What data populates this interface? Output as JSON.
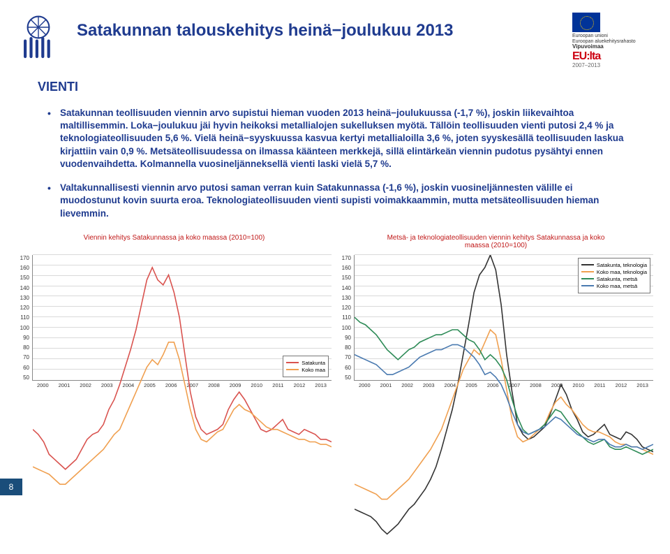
{
  "header": {
    "title": "Satakunnan talouskehitys heinä−joulukuu 2013",
    "eu": {
      "line1": "Euroopan unioni",
      "line2": "Euroopan aluekehitysrahasto",
      "line3": "Vipuvoimaa",
      "brand": "EU:lta",
      "years": "2007–2013"
    }
  },
  "section": "VIENTI",
  "bullets": [
    "Satakunnan teollisuuden viennin arvo supistui hieman vuoden 2013 heinä−joulukuussa (-1,7 %), joskin liikevaihtoa maltillisemmin. Loka−joulukuu jäi hyvin heikoksi metallialojen sukelluksen myötä. Tällöin teollisuuden vienti putosi 2,4 % ja teknologiateollisuuden 5,6 %. Vielä heinä−syyskuussa kasvua kertyi metallialoilla 3,6 %, joten syyskesällä teollisuuden laskua kirjattiin vain 0,9 %. Metsäteollisuudessa on ilmassa käänteen merkkejä, sillä elintärkeän viennin pudotus pysähtyi ennen vuodenvaihdetta. Kolmannella vuosineljänneksellä vienti laski vielä 5,7 %.",
    "Valtakunnallisesti viennin arvo putosi saman verran kuin Satakunnassa (-1,6 %), joskin vuosineljännesten välille ei muodostunut kovin suurta eroa. Teknologiateollisuuden vienti supisti voimakkaammin, mutta metsäteollisuuden hieman lievemmin."
  ],
  "chart1": {
    "title": "Viennin kehitys Satakunnassa ja koko maassa (2010=100)",
    "ylim": [
      50,
      170
    ],
    "ytick_step": 10,
    "years": [
      "2000",
      "2001",
      "2002",
      "2003",
      "2004",
      "2005",
      "2006",
      "2007",
      "2008",
      "2009",
      "2010",
      "2011",
      "2012",
      "2013"
    ],
    "background_color": "#ffffff",
    "grid_color": "#d9d9d9",
    "legend": {
      "position": "bottom-right",
      "items": [
        {
          "label": "Satakunta",
          "color": "#d9534f"
        },
        {
          "label": "Koko maa",
          "color": "#f0a050"
        }
      ]
    },
    "series": [
      {
        "name": "Satakunta",
        "color": "#d9534f",
        "width": 1.6,
        "values": [
          100,
          98,
          95,
          90,
          88,
          86,
          84,
          86,
          88,
          92,
          96,
          98,
          99,
          102,
          108,
          112,
          118,
          125,
          132,
          140,
          150,
          160,
          165,
          160,
          158,
          162,
          155,
          145,
          130,
          115,
          105,
          100,
          98,
          99,
          100,
          102,
          108,
          112,
          115,
          112,
          108,
          104,
          100,
          99,
          100,
          102,
          104,
          100,
          99,
          98,
          100,
          99,
          98,
          96,
          96,
          95
        ]
      },
      {
        "name": "Koko maa",
        "color": "#f0a050",
        "width": 1.6,
        "values": [
          85,
          84,
          83,
          82,
          80,
          78,
          78,
          80,
          82,
          84,
          86,
          88,
          90,
          92,
          95,
          98,
          100,
          105,
          110,
          115,
          120,
          125,
          128,
          126,
          130,
          135,
          135,
          128,
          118,
          108,
          100,
          96,
          95,
          97,
          99,
          100,
          104,
          108,
          110,
          108,
          107,
          105,
          103,
          101,
          100,
          100,
          99,
          98,
          97,
          96,
          96,
          95,
          95,
          94,
          94,
          93
        ]
      }
    ]
  },
  "chart2": {
    "title_line1": "Metsä- ja teknologiateollisuuden viennin kehitys Satakunnassa ja koko",
    "title_line2": "maassa (2010=100)",
    "ylim": [
      50,
      170
    ],
    "ytick_step": 10,
    "years": [
      "2000",
      "2001",
      "2002",
      "2003",
      "2004",
      "2005",
      "2006",
      "2007",
      "2008",
      "2009",
      "2010",
      "2011",
      "2012",
      "2013"
    ],
    "background_color": "#ffffff",
    "grid_color": "#d9d9d9",
    "legend": {
      "position": "top-right",
      "items": [
        {
          "label": "Satakunta, teknologia",
          "color": "#333333"
        },
        {
          "label": "Koko maa, teknologia",
          "color": "#f0a050"
        },
        {
          "label": "Satakunta, metsä",
          "color": "#2e8b57"
        },
        {
          "label": "Koko maa, metsä",
          "color": "#4a7ab0"
        }
      ]
    },
    "series": [
      {
        "name": "Satakunta, teknologia",
        "color": "#333333",
        "width": 1.6,
        "values": [
          68,
          67,
          66,
          65,
          63,
          60,
          58,
          60,
          62,
          65,
          68,
          70,
          73,
          76,
          80,
          85,
          92,
          100,
          108,
          118,
          130,
          142,
          155,
          162,
          165,
          170,
          164,
          150,
          130,
          115,
          102,
          98,
          96,
          97,
          99,
          101,
          106,
          112,
          118,
          114,
          108,
          104,
          99,
          97,
          98,
          100,
          102,
          98,
          97,
          96,
          99,
          98,
          96,
          93,
          92,
          91
        ]
      },
      {
        "name": "Koko maa, teknologia",
        "color": "#f0a050",
        "width": 1.6,
        "values": [
          78,
          77,
          76,
          75,
          74,
          72,
          72,
          74,
          76,
          78,
          80,
          83,
          86,
          89,
          92,
          96,
          100,
          106,
          112,
          118,
          124,
          128,
          132,
          130,
          135,
          140,
          138,
          128,
          116,
          104,
          97,
          95,
          96,
          98,
          100,
          102,
          107,
          111,
          113,
          110,
          108,
          105,
          102,
          100,
          99,
          99,
          98,
          97,
          95,
          94,
          94,
          93,
          93,
          92,
          91,
          90
        ]
      },
      {
        "name": "Satakunta, metsä",
        "color": "#2e8b57",
        "width": 1.6,
        "values": [
          145,
          143,
          142,
          140,
          138,
          135,
          132,
          130,
          128,
          130,
          132,
          133,
          135,
          136,
          137,
          138,
          138,
          139,
          140,
          140,
          138,
          136,
          135,
          132,
          128,
          130,
          128,
          125,
          120,
          112,
          105,
          100,
          98,
          99,
          100,
          102,
          105,
          108,
          107,
          104,
          101,
          99,
          97,
          95,
          94,
          95,
          96,
          93,
          92,
          92,
          93,
          92,
          91,
          90,
          91,
          92
        ]
      },
      {
        "name": "Koko maa, metsä",
        "color": "#4a7ab0",
        "width": 1.6,
        "values": [
          130,
          129,
          128,
          127,
          126,
          124,
          122,
          122,
          123,
          124,
          125,
          127,
          129,
          130,
          131,
          132,
          132,
          133,
          134,
          134,
          133,
          131,
          129,
          126,
          122,
          123,
          121,
          118,
          113,
          107,
          102,
          99,
          98,
          99,
          100,
          101,
          103,
          105,
          104,
          102,
          100,
          98,
          97,
          96,
          95,
          96,
          96,
          94,
          93,
          93,
          94,
          93,
          93,
          92,
          93,
          94
        ]
      }
    ]
  },
  "page_number": "8"
}
